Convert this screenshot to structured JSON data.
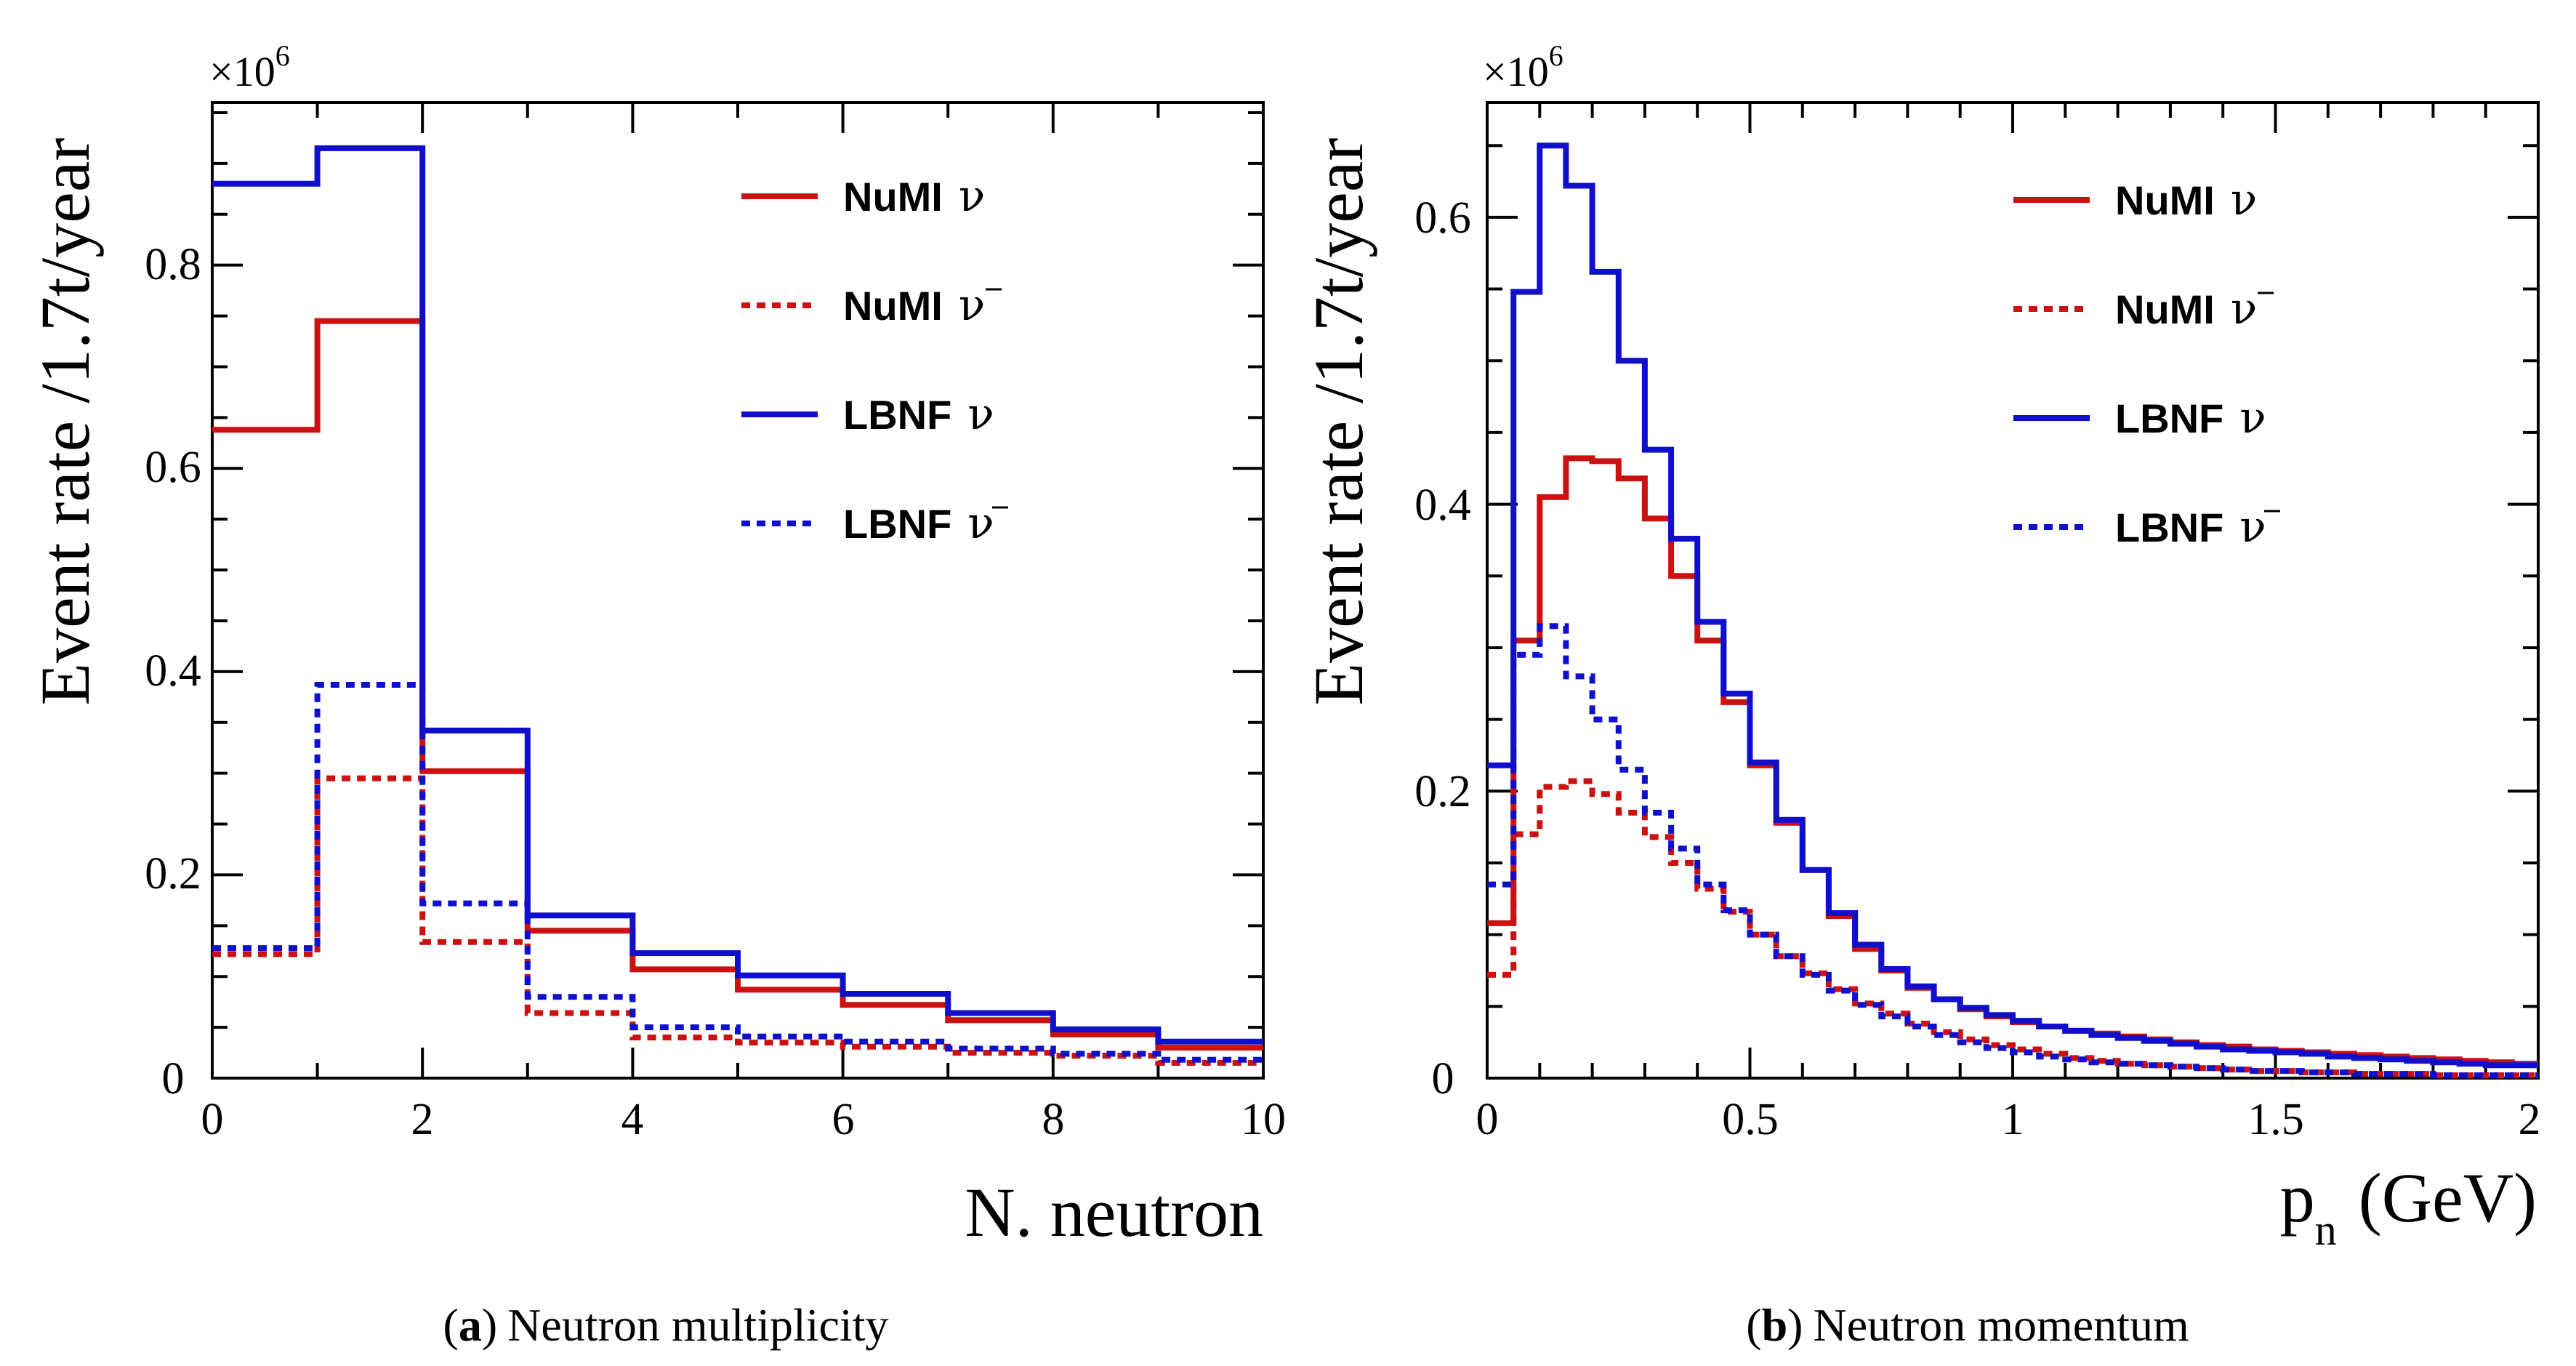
{
  "colors": {
    "red": "#cc1111",
    "blue": "#1010cc"
  },
  "figure": {
    "panels": [
      {
        "caption": {
          "letter": "a",
          "open": "(",
          "close": ")",
          "text": "Neutron multiplicity"
        },
        "exponent": "×10",
        "exponent_power": "6",
        "xlabel": "N. neutron",
        "ylabel": "Event rate /1.7t/year",
        "xticks": [
          "0",
          "2",
          "4",
          "6",
          "8",
          "10"
        ],
        "yticks": [
          "0",
          "0.2",
          "0.4",
          "0.6",
          "0.8"
        ]
      },
      {
        "caption": {
          "letter": "b",
          "open": "(",
          "close": ")",
          "text": "Neutron momentum"
        },
        "exponent": "×10",
        "exponent_power": "6",
        "xlabel_main": "p",
        "xlabel_sub": "n",
        "xlabel_unit": "(GeV)",
        "ylabel": "Event rate /1.7t/year",
        "xticks": [
          "0",
          "0.5",
          "1",
          "1.5",
          "2"
        ],
        "yticks": [
          "0",
          "0.2",
          "0.4",
          "0.6"
        ]
      }
    ],
    "legend": [
      {
        "name": "NuMI",
        "sym": "ν",
        "bar": false,
        "color": "#cc1111",
        "dash": false
      },
      {
        "name": "NuMI",
        "sym": "ν",
        "bar": true,
        "color": "#cc1111",
        "dash": true
      },
      {
        "name": "LBNF",
        "sym": "ν",
        "bar": false,
        "color": "#1010cc",
        "dash": false
      },
      {
        "name": "LBNF",
        "sym": "ν",
        "bar": true,
        "color": "#1010cc",
        "dash": true
      }
    ]
  },
  "chart_data": [
    {
      "type": "histogram-step",
      "title": "Neutron multiplicity",
      "xlabel": "N. neutron",
      "ylabel": "Event rate /1.7t/year",
      "y_scale": "×10^6",
      "xlim": [
        0,
        10
      ],
      "ylim": [
        0,
        0.96
      ],
      "bin_edges": [
        0,
        1,
        2,
        3,
        4,
        5,
        6,
        7,
        8,
        9,
        10
      ],
      "series": [
        {
          "name": "NuMI ν",
          "color": "#cc1111",
          "dash": false,
          "values": [
            0.638,
            0.745,
            0.302,
            0.145,
            0.107,
            0.087,
            0.072,
            0.057,
            0.043,
            0.03
          ]
        },
        {
          "name": "NuMI ν̄",
          "color": "#cc1111",
          "dash": true,
          "values": [
            0.122,
            0.295,
            0.134,
            0.064,
            0.04,
            0.035,
            0.031,
            0.025,
            0.022,
            0.015
          ]
        },
        {
          "name": "LBNF ν",
          "color": "#1010cc",
          "dash": false,
          "values": [
            0.88,
            0.915,
            0.342,
            0.16,
            0.123,
            0.101,
            0.083,
            0.064,
            0.048,
            0.036
          ]
        },
        {
          "name": "LBNF ν̄",
          "color": "#1010cc",
          "dash": true,
          "values": [
            0.128,
            0.387,
            0.172,
            0.08,
            0.05,
            0.041,
            0.036,
            0.029,
            0.024,
            0.018
          ]
        }
      ]
    },
    {
      "type": "histogram-step",
      "title": "Neutron momentum",
      "xlabel": "p_n (GeV)",
      "ylabel": "Event rate /1.7t/year",
      "y_scale": "×10^6",
      "xlim": [
        0,
        2
      ],
      "ylim": [
        0,
        0.68
      ],
      "bin_width": 0.05,
      "series": [
        {
          "name": "NuMI ν",
          "color": "#cc1111",
          "dash": false,
          "values": [
            0.108,
            0.305,
            0.405,
            0.432,
            0.43,
            0.418,
            0.39,
            0.35,
            0.305,
            0.262,
            0.218,
            0.178,
            0.145,
            0.113,
            0.09,
            0.075,
            0.063,
            0.055,
            0.048,
            0.043,
            0.039,
            0.036,
            0.033,
            0.031,
            0.029,
            0.027,
            0.025,
            0.023,
            0.022,
            0.02,
            0.019,
            0.018,
            0.017,
            0.016,
            0.015,
            0.014,
            0.013,
            0.012,
            0.011,
            0.01
          ]
        },
        {
          "name": "NuMI ν̄",
          "color": "#cc1111",
          "dash": true,
          "values": [
            0.072,
            0.17,
            0.203,
            0.207,
            0.198,
            0.185,
            0.168,
            0.15,
            0.132,
            0.116,
            0.1,
            0.085,
            0.073,
            0.062,
            0.052,
            0.045,
            0.038,
            0.032,
            0.027,
            0.023,
            0.02,
            0.017,
            0.014,
            0.012,
            0.01,
            0.009,
            0.008,
            0.007,
            0.006,
            0.005,
            0.005,
            0.004,
            0.004,
            0.003,
            0.003,
            0.003,
            0.002,
            0.002,
            0.002,
            0.002
          ]
        },
        {
          "name": "LBNF ν",
          "color": "#1010cc",
          "dash": false,
          "values": [
            0.218,
            0.548,
            0.65,
            0.622,
            0.562,
            0.5,
            0.438,
            0.376,
            0.318,
            0.268,
            0.22,
            0.18,
            0.145,
            0.115,
            0.093,
            0.076,
            0.064,
            0.055,
            0.049,
            0.044,
            0.04,
            0.036,
            0.033,
            0.03,
            0.028,
            0.026,
            0.024,
            0.022,
            0.02,
            0.019,
            0.018,
            0.017,
            0.015,
            0.014,
            0.013,
            0.012,
            0.011,
            0.01,
            0.009,
            0.009
          ]
        },
        {
          "name": "LBNF ν̄",
          "color": "#1010cc",
          "dash": true,
          "values": [
            0.135,
            0.295,
            0.315,
            0.28,
            0.25,
            0.215,
            0.185,
            0.16,
            0.135,
            0.117,
            0.1,
            0.085,
            0.072,
            0.061,
            0.051,
            0.043,
            0.036,
            0.03,
            0.025,
            0.021,
            0.018,
            0.015,
            0.013,
            0.011,
            0.01,
            0.009,
            0.008,
            0.007,
            0.006,
            0.005,
            0.005,
            0.004,
            0.004,
            0.003,
            0.003,
            0.003,
            0.002,
            0.002,
            0.002,
            0.002
          ]
        }
      ]
    }
  ]
}
